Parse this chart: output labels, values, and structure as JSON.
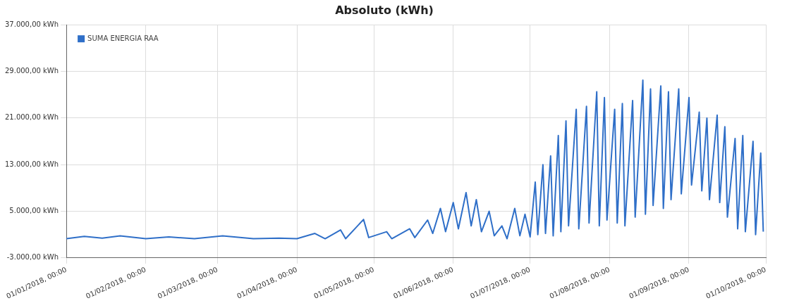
{
  "chart_data": {
    "type": "line",
    "title": "Absoluto (kWh)",
    "x": [
      "2018-01-01",
      "2018-01-08",
      "2018-01-15",
      "2018-01-22",
      "2018-02-01",
      "2018-02-10",
      "2018-02-20",
      "2018-03-03",
      "2018-03-15",
      "2018-03-25",
      "2018-04-01",
      "2018-04-08",
      "2018-04-12",
      "2018-04-18",
      "2018-04-20",
      "2018-04-27",
      "2018-04-29",
      "2018-05-06",
      "2018-05-08",
      "2018-05-15",
      "2018-05-17",
      "2018-05-22",
      "2018-05-24",
      "2018-05-27",
      "2018-05-29",
      "2018-06-01",
      "2018-06-03",
      "2018-06-06",
      "2018-06-08",
      "2018-06-10",
      "2018-06-12",
      "2018-06-15",
      "2018-06-17",
      "2018-06-20",
      "2018-06-22",
      "2018-06-25",
      "2018-06-27",
      "2018-06-29",
      "2018-07-01",
      "2018-07-03",
      "2018-07-04",
      "2018-07-06",
      "2018-07-07",
      "2018-07-09",
      "2018-07-10",
      "2018-07-12",
      "2018-07-13",
      "2018-07-15",
      "2018-07-16",
      "2018-07-19",
      "2018-07-20",
      "2018-07-23",
      "2018-07-24",
      "2018-07-27",
      "2018-07-28",
      "2018-07-30",
      "2018-07-31",
      "2018-08-03",
      "2018-08-04",
      "2018-08-06",
      "2018-08-07",
      "2018-08-10",
      "2018-08-11",
      "2018-08-14",
      "2018-08-15",
      "2018-08-17",
      "2018-08-18",
      "2018-08-21",
      "2018-08-22",
      "2018-08-24",
      "2018-08-25",
      "2018-08-28",
      "2018-08-29",
      "2018-09-01",
      "2018-09-02",
      "2018-09-05",
      "2018-09-06",
      "2018-09-08",
      "2018-09-09",
      "2018-09-12",
      "2018-09-13",
      "2018-09-15",
      "2018-09-16",
      "2018-09-19",
      "2018-09-20",
      "2018-09-22",
      "2018-09-23",
      "2018-09-26",
      "2018-09-27",
      "2018-09-29",
      "2018-09-30"
    ],
    "series": [
      {
        "name": "SUMA ENERGIA RAA",
        "color": "#2f6fc8",
        "values": [
          300,
          700,
          400,
          800,
          300,
          600,
          300,
          800,
          300,
          400,
          300,
          1200,
          300,
          1800,
          300,
          3600,
          500,
          1500,
          300,
          2000,
          500,
          3500,
          1200,
          5500,
          1500,
          6500,
          2000,
          8200,
          2500,
          7000,
          1500,
          5000,
          800,
          2500,
          300,
          5500,
          800,
          4500,
          600,
          10000,
          1000,
          13000,
          1200,
          14500,
          800,
          18000,
          1500,
          20500,
          2500,
          22500,
          2000,
          23000,
          3000,
          25500,
          2500,
          24500,
          3500,
          22500,
          3000,
          23500,
          2500,
          24000,
          4000,
          27500,
          4500,
          26000,
          6000,
          26500,
          5500,
          25500,
          7000,
          26000,
          8000,
          24500,
          9500,
          22000,
          8500,
          21000,
          7000,
          21500,
          6500,
          19500,
          4000,
          17500,
          2000,
          18000,
          1500,
          17000,
          1000,
          15000,
          1500
        ]
      }
    ],
    "ylim": [
      -3000,
      37000
    ],
    "yticks": [
      {
        "value": -3000,
        "label": "-3.000,00 kWh"
      },
      {
        "value": 5000,
        "label": "5.000,00 kWh"
      },
      {
        "value": 13000,
        "label": "13.000,00 kWh"
      },
      {
        "value": 21000,
        "label": "21.000,00 kWh"
      },
      {
        "value": 29000,
        "label": "29.000,00 kWh"
      },
      {
        "value": 37000,
        "label": "37.000,00 kWh"
      }
    ],
    "xlim": [
      "2018-01-01",
      "2018-10-01"
    ],
    "xticks": [
      {
        "value": "2018-01-01",
        "label": "01/01/2018, 00:00"
      },
      {
        "value": "2018-02-01",
        "label": "01/02/2018, 00:00"
      },
      {
        "value": "2018-03-01",
        "label": "01/03/2018, 00:00"
      },
      {
        "value": "2018-04-01",
        "label": "01/04/2018, 00:00"
      },
      {
        "value": "2018-05-01",
        "label": "01/05/2018, 00:00"
      },
      {
        "value": "2018-06-01",
        "label": "01/06/2018, 00:00"
      },
      {
        "value": "2018-07-01",
        "label": "01/07/2018, 00:00"
      },
      {
        "value": "2018-08-01",
        "label": "01/08/2018, 00:00"
      },
      {
        "value": "2018-09-01",
        "label": "01/09/2018, 00:00"
      },
      {
        "value": "2018-10-01",
        "label": "01/10/2018, 00:00"
      }
    ],
    "grid": true,
    "legend": "top left",
    "marker": "none",
    "line_style": "solid"
  }
}
